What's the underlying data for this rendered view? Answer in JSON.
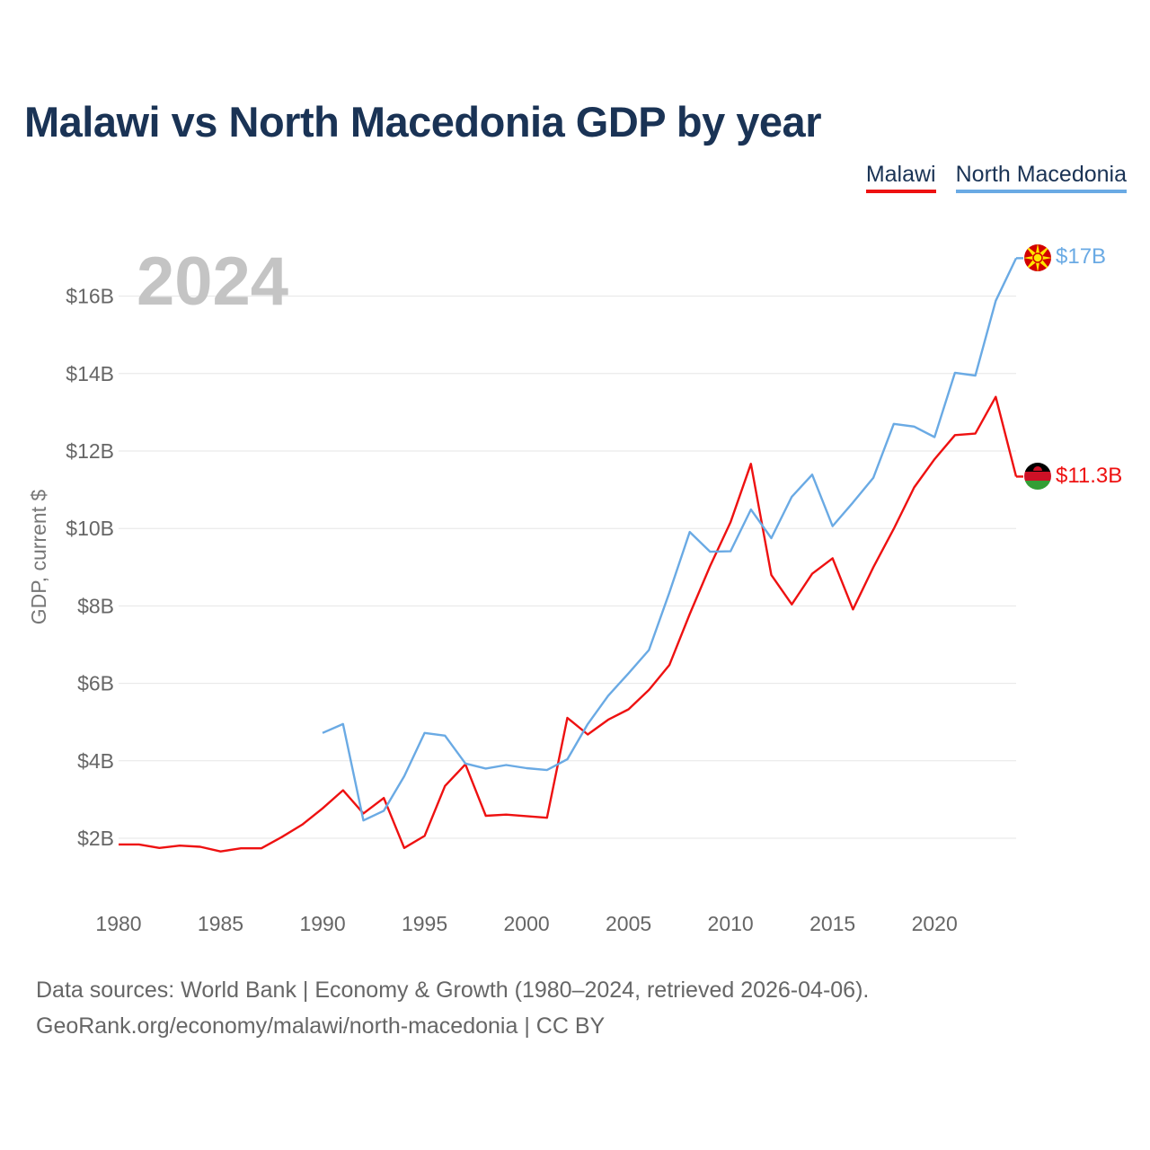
{
  "header": {
    "title": "Malawi vs North Macedonia GDP by year"
  },
  "legend": [
    {
      "label": "Malawi",
      "color": "#ee1111"
    },
    {
      "label": "North Macedonia",
      "color": "#6aaae4"
    }
  ],
  "overlay_year": "2024",
  "end_labels": {
    "malawi": "$11.3B",
    "north_macedonia": "$17B"
  },
  "footer": {
    "line1": "Data sources: World Bank | Economy & Growth (1980–2024, retrieved 2026-04-06).",
    "line2": "GeoRank.org/economy/malawi/north-macedonia | CC BY"
  },
  "chart_data": {
    "type": "line",
    "title": "Malawi vs North Macedonia GDP by year",
    "xlabel": "",
    "ylabel": "GDP, current $",
    "xlim": [
      1980,
      2024
    ],
    "ylim": [
      0,
      17
    ],
    "x_ticks": [
      1980,
      1985,
      1990,
      1995,
      2000,
      2005,
      2010,
      2015,
      2020
    ],
    "x_tick_labels": [
      "1980",
      "1985",
      "1990",
      "1995",
      "2000",
      "2005",
      "2010",
      "2015",
      "2020"
    ],
    "y_ticks": [
      2,
      4,
      6,
      8,
      10,
      12,
      14,
      16
    ],
    "y_tick_labels": [
      "$2B",
      "$4B",
      "$6B",
      "$8B",
      "$10B",
      "$12B",
      "$14B",
      "$16B"
    ],
    "grid": true,
    "legend_position": "top-right",
    "series": [
      {
        "name": "Malawi",
        "color": "#ee1111",
        "x": [
          1980,
          1981,
          1982,
          1983,
          1984,
          1985,
          1986,
          1987,
          1988,
          1989,
          1990,
          1991,
          1992,
          1993,
          1994,
          1995,
          1996,
          1997,
          1998,
          1999,
          2000,
          2001,
          2002,
          2003,
          2004,
          2005,
          2006,
          2007,
          2008,
          2009,
          2010,
          2011,
          2012,
          2013,
          2014,
          2015,
          2016,
          2017,
          2018,
          2019,
          2020,
          2021,
          2022,
          2023,
          2024
        ],
        "values": [
          1.84,
          1.84,
          1.75,
          1.81,
          1.78,
          1.66,
          1.74,
          1.74,
          2.03,
          2.35,
          2.77,
          3.24,
          2.64,
          3.04,
          1.75,
          2.06,
          3.35,
          3.91,
          2.58,
          2.61,
          2.57,
          2.53,
          5.11,
          4.68,
          5.06,
          5.33,
          5.83,
          6.47,
          7.79,
          9.03,
          10.16,
          11.67,
          8.8,
          8.04,
          8.83,
          9.23,
          7.91,
          9.0,
          9.99,
          11.06,
          11.79,
          12.41,
          12.45,
          13.4,
          11.34
        ]
      },
      {
        "name": "North Macedonia",
        "color": "#6aaae4",
        "x": [
          1990,
          1991,
          1992,
          1993,
          1994,
          1995,
          1996,
          1997,
          1998,
          1999,
          2000,
          2001,
          2002,
          2003,
          2004,
          2005,
          2006,
          2007,
          2008,
          2009,
          2010,
          2011,
          2012,
          2013,
          2014,
          2015,
          2016,
          2017,
          2018,
          2019,
          2020,
          2021,
          2022,
          2023,
          2024
        ],
        "values": [
          4.72,
          4.95,
          2.46,
          2.71,
          3.6,
          4.72,
          4.65,
          3.93,
          3.8,
          3.89,
          3.81,
          3.76,
          4.04,
          4.95,
          5.68,
          6.26,
          6.86,
          8.34,
          9.91,
          9.4,
          9.41,
          10.49,
          9.75,
          10.82,
          11.39,
          10.06,
          10.67,
          11.31,
          12.7,
          12.63,
          12.36,
          14.02,
          13.95,
          15.88,
          16.98
        ]
      }
    ]
  }
}
